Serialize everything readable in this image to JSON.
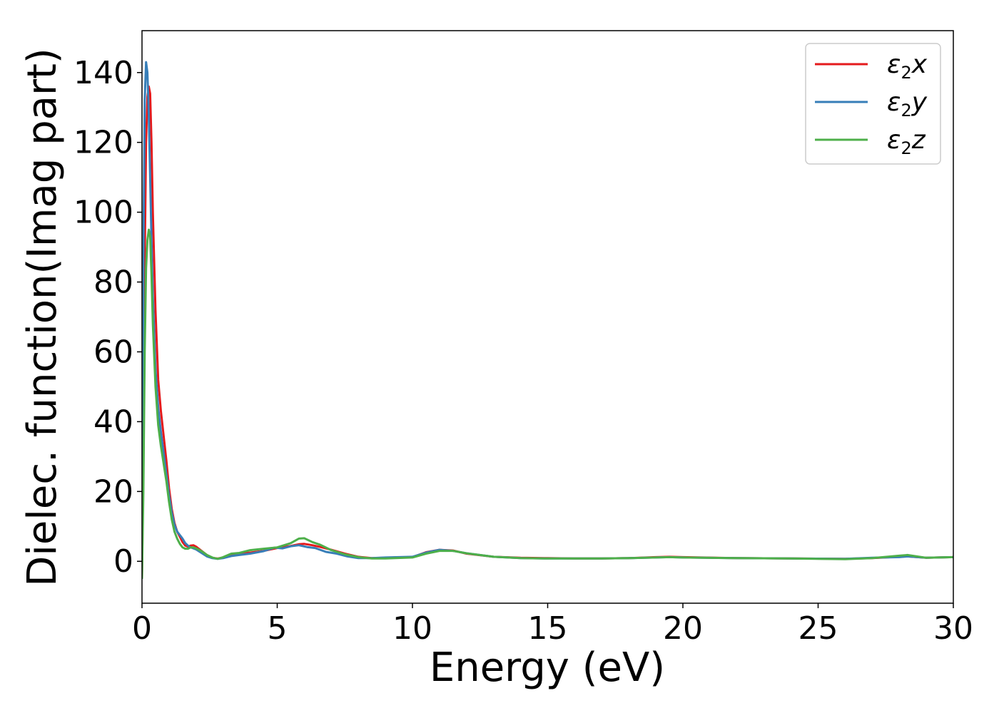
{
  "chart_data": {
    "type": "line",
    "title": "",
    "xlabel": "Energy (eV)",
    "ylabel": "Dielec. function(Imag part)",
    "xlim": [
      0,
      30
    ],
    "ylim": [
      -12,
      152
    ],
    "xticks": [
      0,
      5,
      10,
      15,
      20,
      25,
      30
    ],
    "yticks": [
      0,
      20,
      40,
      60,
      80,
      100,
      120,
      140
    ],
    "grid": false,
    "legend_position": "top-right",
    "series": [
      {
        "name": "ε₂x",
        "legend_base": "ε",
        "legend_sub": "2",
        "legend_var": "x",
        "color": "#e41a1c",
        "x": [
          0,
          0.05,
          0.1,
          0.15,
          0.2,
          0.25,
          0.3,
          0.35,
          0.4,
          0.5,
          0.6,
          0.7,
          0.8,
          0.9,
          1.0,
          1.1,
          1.2,
          1.3,
          1.4,
          1.5,
          1.6,
          1.7,
          1.8,
          1.9,
          2.0,
          2.2,
          2.4,
          2.6,
          2.8,
          3.0,
          3.3,
          3.6,
          4.0,
          4.5,
          5.0,
          5.5,
          5.8,
          6.0,
          6.3,
          6.6,
          7.0,
          7.5,
          8.0,
          8.5,
          9.0,
          10.0,
          10.5,
          11.0,
          11.5,
          12.0,
          13.0,
          14.0,
          15.0,
          16.0,
          17.0,
          18.0,
          19.0,
          19.5,
          20.0,
          22.0,
          24.0,
          26.0,
          27.0,
          28.0,
          28.3,
          29.0,
          30.0
        ],
        "y": [
          -5,
          30,
          85,
          120,
          133,
          136,
          134,
          120,
          100,
          72,
          52,
          43,
          36,
          29,
          21,
          15,
          11,
          8.5,
          7,
          5.5,
          4.5,
          4.2,
          4.5,
          4.6,
          4.2,
          3,
          1.8,
          1,
          0.8,
          1.1,
          1.9,
          2.2,
          2.5,
          3,
          3.8,
          4.4,
          4.9,
          5,
          4.6,
          4.1,
          3.3,
          2.2,
          1.3,
          0.9,
          1,
          1.2,
          2.6,
          3.3,
          3.1,
          2.2,
          1.3,
          1,
          0.9,
          0.8,
          0.8,
          0.9,
          1.2,
          1.3,
          1.2,
          0.9,
          0.8,
          0.7,
          0.9,
          1.3,
          1.4,
          1,
          1.2
        ]
      },
      {
        "name": "ε₂y",
        "legend_base": "ε",
        "legend_sub": "2",
        "legend_var": "y",
        "color": "#377eb8",
        "x": [
          0,
          0.05,
          0.1,
          0.15,
          0.2,
          0.25,
          0.3,
          0.35,
          0.4,
          0.5,
          0.6,
          0.7,
          0.8,
          0.9,
          1.0,
          1.1,
          1.2,
          1.3,
          1.4,
          1.5,
          1.6,
          1.7,
          1.8,
          1.9,
          2.0,
          2.2,
          2.4,
          2.6,
          2.8,
          3.0,
          3.3,
          3.6,
          4.0,
          4.5,
          4.9,
          5.2,
          5.5,
          5.8,
          6.1,
          6.4,
          6.8,
          7.2,
          7.6,
          8.0,
          8.5,
          9.0,
          10.0,
          10.5,
          11.0,
          11.5,
          12.0,
          13.0,
          14.0,
          15.0,
          16.0,
          17.0,
          18.0,
          19.0,
          19.5,
          20.0,
          22.0,
          24.0,
          26.0,
          27.0,
          28.0,
          28.3,
          29.0,
          30.0
        ],
        "y": [
          -5,
          85,
          132,
          143,
          140,
          128,
          110,
          92,
          76,
          55,
          44,
          37,
          31,
          25,
          19,
          14,
          10.5,
          8.5,
          7.5,
          6.5,
          5.2,
          4.5,
          4,
          3.7,
          3.4,
          2.4,
          1.4,
          0.9,
          0.7,
          0.9,
          1.5,
          1.8,
          2.2,
          2.9,
          3.9,
          3.7,
          4.3,
          4.6,
          4.1,
          3.8,
          2.7,
          2.2,
          1.4,
          0.9,
          0.9,
          1.1,
          1.3,
          2.5,
          3.3,
          3,
          2.3,
          1.3,
          0.9,
          0.8,
          0.8,
          0.8,
          0.9,
          1.1,
          1.2,
          1.1,
          0.9,
          0.8,
          0.7,
          1,
          1.2,
          1.4,
          1,
          1.2
        ]
      },
      {
        "name": "ε₂z",
        "legend_base": "ε",
        "legend_sub": "2",
        "legend_var": "z",
        "color": "#4daf4a",
        "x": [
          0,
          0.05,
          0.1,
          0.15,
          0.2,
          0.25,
          0.3,
          0.35,
          0.4,
          0.5,
          0.6,
          0.7,
          0.8,
          0.9,
          1.0,
          1.1,
          1.2,
          1.3,
          1.4,
          1.5,
          1.6,
          1.7,
          1.8,
          1.9,
          2.0,
          2.2,
          2.4,
          2.6,
          2.8,
          3.0,
          3.3,
          3.6,
          4.0,
          4.5,
          5.0,
          5.5,
          5.8,
          6.0,
          6.3,
          6.6,
          7.0,
          7.5,
          8.0,
          8.5,
          9.0,
          10.0,
          10.5,
          11.0,
          11.5,
          12.0,
          13.0,
          14.0,
          15.0,
          16.0,
          17.0,
          18.0,
          19.0,
          19.5,
          20.0,
          22.0,
          24.0,
          26.0,
          27.0,
          28.0,
          28.3,
          29.0,
          30.0
        ],
        "y": [
          -5,
          20,
          60,
          84,
          92,
          95,
          93,
          82,
          68,
          50,
          39,
          33,
          28,
          23,
          17,
          12,
          8.5,
          6.5,
          5,
          4,
          3.6,
          3.6,
          4,
          4,
          3.7,
          2.9,
          1.8,
          1.1,
          0.7,
          1.2,
          2.2,
          2.4,
          3.2,
          3.6,
          4,
          5.2,
          6.5,
          6.6,
          5.5,
          4.7,
          3.2,
          2,
          1.2,
          0.8,
          0.8,
          1.1,
          2.2,
          3,
          3,
          2.3,
          1.3,
          0.9,
          0.8,
          0.8,
          0.8,
          0.9,
          1.1,
          1.2,
          1.1,
          0.9,
          0.8,
          0.6,
          0.9,
          1.6,
          1.8,
          1,
          1.2
        ]
      }
    ]
  }
}
